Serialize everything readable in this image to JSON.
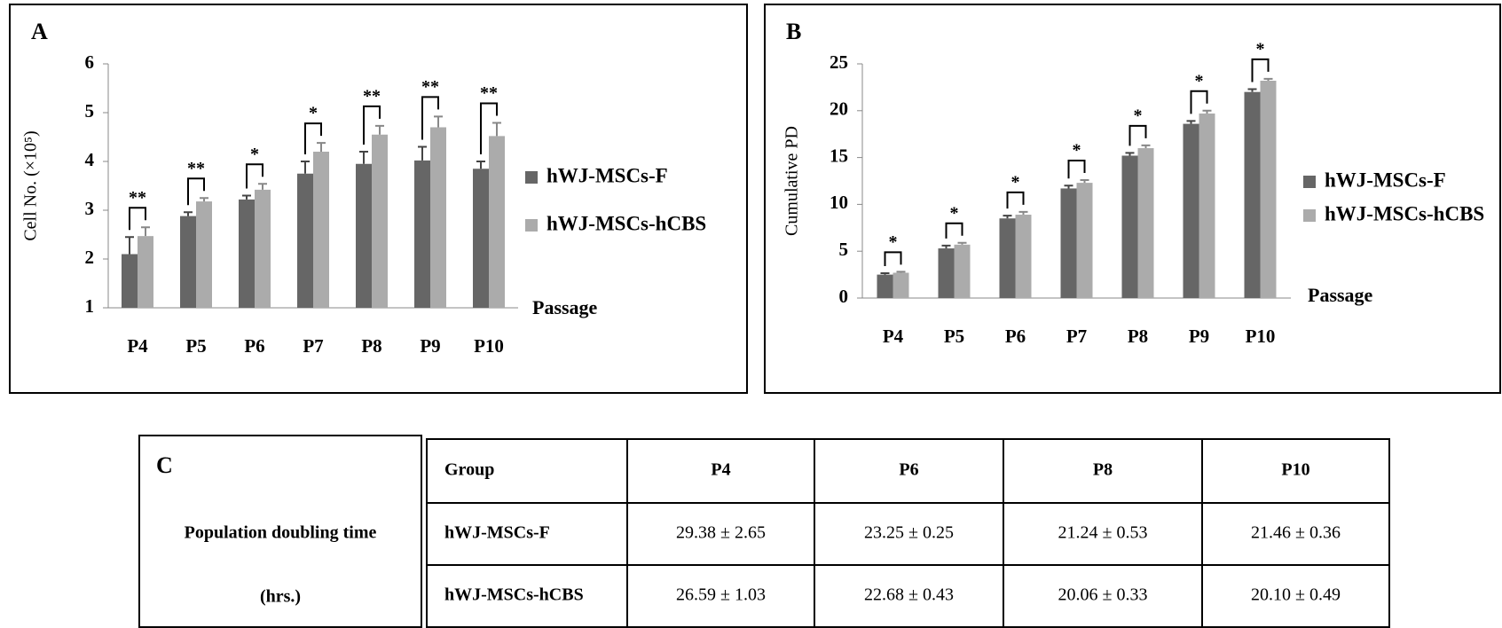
{
  "chart_data": [
    {
      "type": "bar",
      "panel": "A",
      "ylabel": "Cell No. (×10⁵)",
      "xlabel": "Passage",
      "categories": [
        "P4",
        "P5",
        "P6",
        "P7",
        "P8",
        "P9",
        "P10"
      ],
      "ylim": [
        1,
        6
      ],
      "yticks": [
        1,
        2,
        3,
        4,
        5,
        6
      ],
      "series": [
        {
          "name": "hWJ-MSCs-F",
          "color": "#666666",
          "values": [
            2.1,
            2.88,
            3.22,
            3.75,
            3.95,
            4.02,
            3.85
          ],
          "errors": [
            0.35,
            0.08,
            0.08,
            0.25,
            0.25,
            0.28,
            0.15
          ]
        },
        {
          "name": "hWJ-MSCs-hCBS",
          "color": "#ababab",
          "values": [
            2.47,
            3.18,
            3.42,
            4.2,
            4.55,
            4.7,
            4.52
          ],
          "errors": [
            0.18,
            0.07,
            0.12,
            0.18,
            0.18,
            0.22,
            0.27
          ]
        }
      ],
      "annotations": [
        "**",
        "**",
        "*",
        "*",
        "**",
        "**",
        "**"
      ]
    },
    {
      "type": "bar",
      "panel": "B",
      "ylabel": "Cumulative PD",
      "xlabel": "Passage",
      "categories": [
        "P4",
        "P5",
        "P6",
        "P7",
        "P8",
        "P9",
        "P10"
      ],
      "ylim": [
        0,
        25
      ],
      "yticks": [
        0,
        5,
        10,
        15,
        20,
        25
      ],
      "series": [
        {
          "name": "hWJ-MSCs-F",
          "color": "#666666",
          "values": [
            2.5,
            5.3,
            8.5,
            11.7,
            15.2,
            18.6,
            22.0
          ],
          "errors": [
            0.15,
            0.3,
            0.3,
            0.3,
            0.3,
            0.3,
            0.3
          ]
        },
        {
          "name": "hWJ-MSCs-hCBS",
          "color": "#ababab",
          "values": [
            2.7,
            5.7,
            8.9,
            12.3,
            16.0,
            19.7,
            23.2
          ],
          "errors": [
            0.1,
            0.2,
            0.3,
            0.3,
            0.3,
            0.3,
            0.2
          ]
        }
      ],
      "annotations": [
        "*",
        "*",
        "*",
        "*",
        "*",
        "*",
        "*"
      ]
    }
  ],
  "table": {
    "panel": "C",
    "caption": [
      "Population doubling time",
      "(hrs.)"
    ],
    "header": [
      "Group",
      "P4",
      "P6",
      "P8",
      "P10"
    ],
    "rows": [
      [
        "hWJ-MSCs-F",
        "29.38 ± 2.65",
        "23.25 ± 0.25",
        "21.24 ± 0.53",
        "21.46 ± 0.36"
      ],
      [
        "hWJ-MSCs-hCBS",
        "26.59 ± 1.03",
        "22.68 ± 0.43",
        "20.06 ± 0.33",
        "20.10 ± 0.49"
      ]
    ]
  }
}
